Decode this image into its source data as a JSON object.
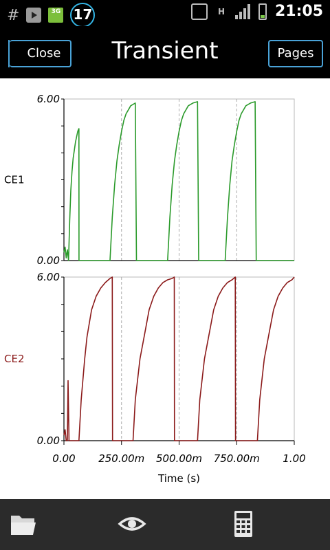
{
  "statusbar": {
    "badge_count": "17",
    "network": "3G",
    "data_type": "H",
    "time": "21:05"
  },
  "header": {
    "close_label": "Close",
    "title": "Transient",
    "pages_label": "Pages"
  },
  "chart_data": [
    {
      "type": "line",
      "ylabel": "CE1",
      "ylim": [
        0,
        6
      ],
      "yticks": [
        "6.00",
        "0.00"
      ],
      "xlim": [
        0,
        1
      ],
      "color": "#2a9a2a",
      "series": [
        {
          "name": "CE1",
          "x": [
            0.0,
            0.005,
            0.01,
            0.015,
            0.02,
            0.025,
            0.03,
            0.035,
            0.04,
            0.05,
            0.06,
            0.065,
            0.0655,
            0.1,
            0.15,
            0.2,
            0.21,
            0.22,
            0.23,
            0.24,
            0.25,
            0.26,
            0.27,
            0.28,
            0.29,
            0.31,
            0.315,
            0.35,
            0.4,
            0.45,
            0.46,
            0.47,
            0.48,
            0.49,
            0.5,
            0.51,
            0.52,
            0.54,
            0.56,
            0.58,
            0.585,
            0.62,
            0.66,
            0.7,
            0.71,
            0.72,
            0.73,
            0.74,
            0.75,
            0.76,
            0.77,
            0.79,
            0.81,
            0.83,
            0.835,
            0.9,
            1.0
          ],
          "y": [
            0.3,
            0.5,
            0.1,
            0.4,
            0.0,
            1.5,
            2.6,
            3.3,
            3.8,
            4.4,
            4.8,
            4.9,
            0.0,
            0.0,
            0.0,
            0.0,
            1.6,
            2.8,
            3.7,
            4.3,
            4.8,
            5.2,
            5.45,
            5.6,
            5.75,
            5.85,
            0.0,
            0.0,
            0.0,
            0.0,
            1.6,
            2.8,
            3.7,
            4.3,
            4.8,
            5.2,
            5.45,
            5.75,
            5.85,
            5.9,
            0.0,
            0.0,
            0.0,
            0.0,
            1.6,
            2.8,
            3.7,
            4.3,
            4.8,
            5.2,
            5.45,
            5.75,
            5.85,
            5.9,
            0.0,
            0.0,
            0.0
          ]
        }
      ]
    },
    {
      "type": "line",
      "ylabel": "CE2",
      "ylim": [
        0,
        6
      ],
      "yticks": [
        "6.00",
        "0.00"
      ],
      "xlim": [
        0,
        1
      ],
      "xticks": [
        "0.00",
        "250.00m",
        "500.00m",
        "750.00m",
        "1.00"
      ],
      "xlabel": "Time (s)",
      "color": "#8b1a1a",
      "series": [
        {
          "name": "CE2",
          "x": [
            0.0,
            0.005,
            0.01,
            0.015,
            0.018,
            0.022,
            0.025,
            0.03,
            0.035,
            0.04,
            0.05,
            0.06,
            0.065,
            0.075,
            0.09,
            0.1,
            0.12,
            0.14,
            0.16,
            0.18,
            0.2,
            0.21,
            0.211,
            0.25,
            0.3,
            0.31,
            0.33,
            0.35,
            0.37,
            0.39,
            0.41,
            0.43,
            0.45,
            0.47,
            0.479,
            0.48,
            0.5,
            0.58,
            0.59,
            0.61,
            0.63,
            0.65,
            0.67,
            0.69,
            0.71,
            0.73,
            0.744,
            0.745,
            0.78,
            0.84,
            0.85,
            0.87,
            0.89,
            0.91,
            0.93,
            0.95,
            0.97,
            0.99,
            1.0
          ],
          "y": [
            0.2,
            0.4,
            0.0,
            0.0,
            2.2,
            0.0,
            0.0,
            0.0,
            0.0,
            0.0,
            0.0,
            0.0,
            0.0,
            1.5,
            3.0,
            3.8,
            4.8,
            5.3,
            5.6,
            5.8,
            5.95,
            6.0,
            0.0,
            0.0,
            0.0,
            1.5,
            3.0,
            3.9,
            4.8,
            5.3,
            5.6,
            5.8,
            5.9,
            5.95,
            6.0,
            0.0,
            0.0,
            0.0,
            1.5,
            3.0,
            3.9,
            4.8,
            5.3,
            5.6,
            5.8,
            5.9,
            6.0,
            0.0,
            0.0,
            0.0,
            1.5,
            3.0,
            3.9,
            4.8,
            5.3,
            5.6,
            5.8,
            5.9,
            6.0
          ]
        }
      ]
    }
  ],
  "bottombar": {
    "icons": [
      "folder-icon",
      "eye-icon",
      "calculator-icon"
    ]
  }
}
